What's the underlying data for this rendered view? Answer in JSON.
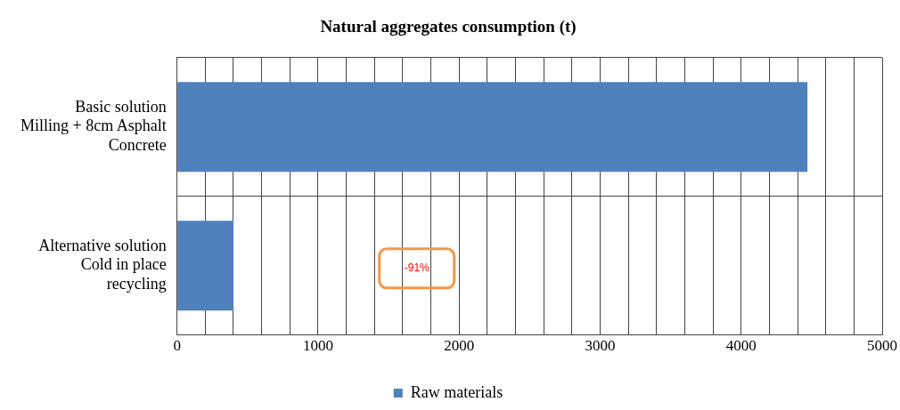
{
  "chart_data": {
    "type": "bar",
    "orientation": "horizontal",
    "title": "Natural aggregates consumption (t)",
    "categories": [
      "Basic solution\nMilling + 8cm Asphalt\nConcrete",
      "Alternative solution\nCold in place\nrecycling"
    ],
    "series": [
      {
        "name": "Raw materials",
        "color": "#4f81bd",
        "values": [
          4470,
          400
        ]
      }
    ],
    "xlim": [
      0,
      5000
    ],
    "xticks": [
      0,
      {
        "value": 200,
        "label": null
      },
      {
        "value": 400,
        "label": null
      },
      {
        "value": 600,
        "label": null
      },
      {
        "value": 800,
        "label": null
      },
      1000,
      {
        "value": 1200,
        "label": null
      },
      {
        "value": 1400,
        "label": null
      },
      {
        "value": 1600,
        "label": null
      },
      {
        "value": 1800,
        "label": null
      },
      2000,
      {
        "value": 2200,
        "label": null
      },
      {
        "value": 2400,
        "label": null
      },
      {
        "value": 2600,
        "label": null
      },
      {
        "value": 2800,
        "label": null
      },
      3000,
      {
        "value": 3200,
        "label": null
      },
      {
        "value": 3400,
        "label": null
      },
      {
        "value": 3600,
        "label": null
      },
      {
        "value": 3800,
        "label": null
      },
      4000,
      {
        "value": 4200,
        "label": null
      },
      {
        "value": 4400,
        "label": null
      },
      {
        "value": 4600,
        "label": null
      },
      {
        "value": 4800,
        "label": null
      },
      5000
    ],
    "grid": true,
    "legend": "bottom",
    "annotations": [
      "-91%"
    ]
  }
}
